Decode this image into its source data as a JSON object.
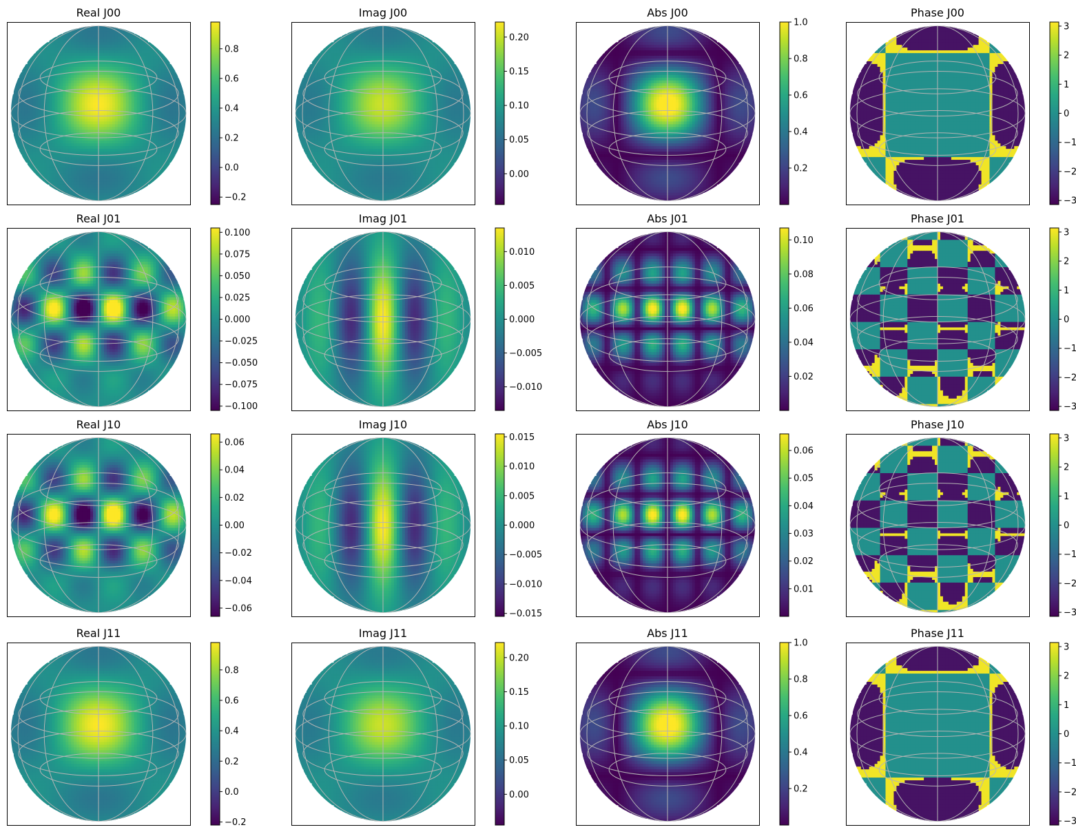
{
  "chart_data": [
    {
      "type": "heatmap",
      "projection": "orthographic sky map with graticule",
      "title": "Real J00",
      "field": "real",
      "element": "J00",
      "colormap": "viridis",
      "colorbar": {
        "range": [
          -0.25,
          0.98
        ],
        "ticks": [
          "0.8",
          "0.6",
          "0.4",
          "0.2",
          "0.0",
          "−0.2"
        ]
      }
    },
    {
      "type": "heatmap",
      "projection": "orthographic sky map with graticule",
      "title": "Imag J00",
      "field": "imag",
      "element": "J00",
      "colormap": "viridis",
      "colorbar": {
        "range": [
          -0.045,
          0.222
        ],
        "ticks": [
          "0.20",
          "0.15",
          "0.10",
          "0.05",
          "0.00"
        ]
      }
    },
    {
      "type": "heatmap",
      "projection": "orthographic sky map with graticule",
      "title": "Abs J00",
      "field": "abs",
      "element": "J00",
      "colormap": "viridis",
      "colorbar": {
        "range": [
          0.0,
          1.0
        ],
        "ticks": [
          "1.0",
          "0.8",
          "0.6",
          "0.4",
          "0.2"
        ]
      }
    },
    {
      "type": "heatmap",
      "projection": "orthographic sky map with graticule",
      "title": "Phase J00",
      "field": "phase",
      "element": "J00",
      "colormap": "viridis",
      "colorbar": {
        "range": [
          -3.14,
          3.14
        ],
        "ticks": [
          "3",
          "2",
          "1",
          "0",
          "−1",
          "−2",
          "−3"
        ]
      }
    },
    {
      "type": "heatmap",
      "projection": "orthographic sky map with graticule",
      "title": "Real J01",
      "field": "real",
      "element": "J01",
      "colormap": "viridis",
      "colorbar": {
        "range": [
          -0.105,
          0.105
        ],
        "ticks": [
          "0.100",
          "0.075",
          "0.050",
          "0.025",
          "0.000",
          "−0.025",
          "−0.050",
          "−0.075",
          "−0.100"
        ]
      }
    },
    {
      "type": "heatmap",
      "projection": "orthographic sky map with graticule",
      "title": "Imag J01",
      "field": "imag",
      "element": "J01",
      "colormap": "viridis",
      "colorbar": {
        "range": [
          -0.0135,
          0.0135
        ],
        "ticks": [
          "0.010",
          "0.005",
          "0.000",
          "−0.005",
          "−0.010"
        ]
      }
    },
    {
      "type": "heatmap",
      "projection": "orthographic sky map with graticule",
      "title": "Abs J01",
      "field": "abs",
      "element": "J01",
      "colormap": "viridis",
      "colorbar": {
        "range": [
          0.0,
          0.107
        ],
        "ticks": [
          "0.10",
          "0.08",
          "0.06",
          "0.04",
          "0.02"
        ]
      }
    },
    {
      "type": "heatmap",
      "projection": "orthographic sky map with graticule",
      "title": "Phase J01",
      "field": "phase",
      "element": "J01",
      "colormap": "viridis",
      "colorbar": {
        "range": [
          -3.14,
          3.14
        ],
        "ticks": [
          "3",
          "2",
          "1",
          "0",
          "−1",
          "−2",
          "−3"
        ]
      }
    },
    {
      "type": "heatmap",
      "projection": "orthographic sky map with graticule",
      "title": "Real J10",
      "field": "real",
      "element": "J10",
      "colormap": "viridis",
      "colorbar": {
        "range": [
          -0.066,
          0.066
        ],
        "ticks": [
          "0.06",
          "0.04",
          "0.02",
          "0.00",
          "−0.02",
          "−0.04",
          "−0.06"
        ]
      }
    },
    {
      "type": "heatmap",
      "projection": "orthographic sky map with graticule",
      "title": "Imag J10",
      "field": "imag",
      "element": "J10",
      "colormap": "viridis",
      "colorbar": {
        "range": [
          -0.0155,
          0.0155
        ],
        "ticks": [
          "0.015",
          "0.010",
          "0.005",
          "0.000",
          "−0.005",
          "−0.010",
          "−0.015"
        ]
      }
    },
    {
      "type": "heatmap",
      "projection": "orthographic sky map with graticule",
      "title": "Abs J10",
      "field": "abs",
      "element": "J10",
      "colormap": "viridis",
      "colorbar": {
        "range": [
          0.0,
          0.066
        ],
        "ticks": [
          "0.06",
          "0.05",
          "0.04",
          "0.03",
          "0.02",
          "0.01"
        ]
      }
    },
    {
      "type": "heatmap",
      "projection": "orthographic sky map with graticule",
      "title": "Phase J10",
      "field": "phase",
      "element": "J10",
      "colormap": "viridis",
      "colorbar": {
        "range": [
          -3.14,
          3.14
        ],
        "ticks": [
          "3",
          "2",
          "1",
          "0",
          "−1",
          "−2",
          "−3"
        ]
      }
    },
    {
      "type": "heatmap",
      "projection": "orthographic sky map with graticule",
      "title": "Real J11",
      "field": "real",
      "element": "J11",
      "colormap": "viridis",
      "colorbar": {
        "range": [
          -0.22,
          0.98
        ],
        "ticks": [
          "0.8",
          "0.6",
          "0.4",
          "0.2",
          "0.0",
          "−0.2"
        ]
      }
    },
    {
      "type": "heatmap",
      "projection": "orthographic sky map with graticule",
      "title": "Imag J11",
      "field": "imag",
      "element": "J11",
      "colormap": "viridis",
      "colorbar": {
        "range": [
          -0.045,
          0.222
        ],
        "ticks": [
          "0.20",
          "0.15",
          "0.10",
          "0.05",
          "0.00"
        ]
      }
    },
    {
      "type": "heatmap",
      "projection": "orthographic sky map with graticule",
      "title": "Abs J11",
      "field": "abs",
      "element": "J11",
      "colormap": "viridis",
      "colorbar": {
        "range": [
          0.0,
          1.0
        ],
        "ticks": [
          "1.0",
          "0.8",
          "0.6",
          "0.4",
          "0.2"
        ]
      }
    },
    {
      "type": "heatmap",
      "projection": "orthographic sky map with graticule",
      "title": "Phase J11",
      "field": "phase",
      "element": "J11",
      "colormap": "viridis",
      "colorbar": {
        "range": [
          -3.14,
          3.14
        ],
        "ticks": [
          "3",
          "2",
          "1",
          "0",
          "−1",
          "−2",
          "−3"
        ]
      }
    }
  ],
  "colors": {
    "viridis_low": "#440154",
    "viridis_mid": "#21918c",
    "viridis_high": "#fde725",
    "graticule": "#b4b4b4",
    "frame": "#000000",
    "background": "#ffffff"
  }
}
